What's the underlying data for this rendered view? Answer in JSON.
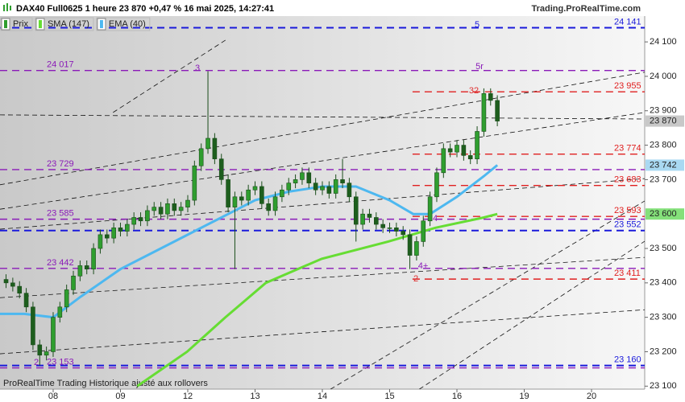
{
  "chart_data": {
    "type": "candlestick",
    "title": "DAX40 Full0625 1 heure 23 870 +0,47 % 16 mai 2025, 14:27:41",
    "source": "Trading.ProRealTime.com",
    "footer": "ProRealTime Trading  Historique ajusté aux rollovers",
    "xlim": [
      -0.79,
      8.79
    ],
    "xticks": [
      {
        "value": 0,
        "label": "08"
      },
      {
        "value": 1,
        "label": "09"
      },
      {
        "value": 2,
        "label": "12"
      },
      {
        "value": 3,
        "label": "13"
      },
      {
        "value": 4,
        "label": "14"
      },
      {
        "value": 5,
        "label": "15"
      },
      {
        "value": 6,
        "label": "16"
      },
      {
        "value": 7,
        "label": "19"
      },
      {
        "value": 8,
        "label": "20"
      }
    ],
    "ylim": [
      23096,
      24175
    ],
    "yticks": [
      {
        "value": 23100,
        "label": "23 100"
      },
      {
        "value": 23200,
        "label": "23 200"
      },
      {
        "value": 23300,
        "label": "23 300"
      },
      {
        "value": 23400,
        "label": "23 400"
      },
      {
        "value": 23500,
        "label": "23 500"
      },
      {
        "value": 23700,
        "label": "23 700"
      },
      {
        "value": 23800,
        "label": "23 800"
      },
      {
        "value": 23900,
        "label": "23 900"
      },
      {
        "value": 24000,
        "label": "24 000"
      },
      {
        "value": 24100,
        "label": "24 100"
      }
    ],
    "candles": {
      "name": "Prix",
      "up_color": "#2f9e2f",
      "down_color": "#1d5e1d",
      "x": [
        -0.7,
        -0.6,
        -0.5,
        -0.4,
        -0.3,
        -0.2,
        -0.1,
        0,
        0.1,
        0.2,
        0.3,
        0.4,
        0.5,
        0.6,
        0.7,
        0.8,
        0.9,
        1,
        1.1,
        1.2,
        1.3,
        1.4,
        1.5,
        1.6,
        1.7,
        1.8,
        1.9,
        2,
        2.1,
        2.2,
        2.3,
        2.4,
        2.5,
        2.6,
        2.7,
        2.8,
        2.9,
        3,
        3.1,
        3.2,
        3.3,
        3.4,
        3.5,
        3.6,
        3.7,
        3.8,
        3.9,
        4,
        4.1,
        4.2,
        4.3,
        4.4,
        4.5,
        4.6,
        4.7,
        4.8,
        4.9,
        5,
        5.1,
        5.2,
        5.3,
        5.4,
        5.5,
        5.6,
        5.7,
        5.8,
        5.9,
        6,
        6.1,
        6.2,
        6.3,
        6.4,
        6.5,
        6.6
      ],
      "ohlc": [
        [
          23410,
          23425,
          23385,
          23400
        ],
        [
          23400,
          23415,
          23375,
          23390
        ],
        [
          23390,
          23405,
          23355,
          23370
        ],
        [
          23370,
          23385,
          23315,
          23330
        ],
        [
          23330,
          23345,
          23205,
          23220
        ],
        [
          23220,
          23235,
          23160,
          23190
        ],
        [
          23190,
          23215,
          23175,
          23200
        ],
        [
          23200,
          23315,
          23185,
          23300
        ],
        [
          23300,
          23345,
          23285,
          23330
        ],
        [
          23330,
          23395,
          23315,
          23380
        ],
        [
          23380,
          23435,
          23365,
          23420
        ],
        [
          23420,
          23465,
          23405,
          23450
        ],
        [
          23450,
          23465,
          23425,
          23440
        ],
        [
          23440,
          23515,
          23425,
          23500
        ],
        [
          23500,
          23555,
          23485,
          23540
        ],
        [
          23540,
          23555,
          23515,
          23530
        ],
        [
          23530,
          23575,
          23515,
          23560
        ],
        [
          23560,
          23575,
          23535,
          23550
        ],
        [
          23550,
          23585,
          23535,
          23570
        ],
        [
          23570,
          23605,
          23555,
          23590
        ],
        [
          23590,
          23605,
          23565,
          23580
        ],
        [
          23580,
          23625,
          23565,
          23610
        ],
        [
          23610,
          23635,
          23595,
          23620
        ],
        [
          23620,
          23635,
          23585,
          23600
        ],
        [
          23600,
          23645,
          23585,
          23630
        ],
        [
          23630,
          23645,
          23595,
          23610
        ],
        [
          23610,
          23635,
          23595,
          23620
        ],
        [
          23620,
          23655,
          23605,
          23640
        ],
        [
          23640,
          23755,
          23625,
          23740
        ],
        [
          23740,
          23805,
          23725,
          23790
        ],
        [
          23790,
          24015,
          23775,
          23820
        ],
        [
          23820,
          23835,
          23745,
          23760
        ],
        [
          23760,
          23775,
          23685,
          23700
        ],
        [
          23700,
          23715,
          23605,
          23620
        ],
        [
          23620,
          23665,
          23440,
          23650
        ],
        [
          23650,
          23665,
          23625,
          23640
        ],
        [
          23640,
          23685,
          23625,
          23670
        ],
        [
          23670,
          23695,
          23655,
          23680
        ],
        [
          23680,
          23695,
          23615,
          23630
        ],
        [
          23630,
          23645,
          23595,
          23610
        ],
        [
          23610,
          23665,
          23595,
          23650
        ],
        [
          23650,
          23685,
          23635,
          23670
        ],
        [
          23670,
          23705,
          23655,
          23690
        ],
        [
          23690,
          23715,
          23675,
          23700
        ],
        [
          23700,
          23735,
          23685,
          23720
        ],
        [
          23720,
          23735,
          23675,
          23690
        ],
        [
          23690,
          23705,
          23655,
          23670
        ],
        [
          23670,
          23695,
          23655,
          23680
        ],
        [
          23680,
          23695,
          23645,
          23660
        ],
        [
          23660,
          23715,
          23645,
          23700
        ],
        [
          23700,
          23760,
          23675,
          23690
        ],
        [
          23690,
          23705,
          23635,
          23650
        ],
        [
          23650,
          23665,
          23520,
          23570
        ],
        [
          23570,
          23615,
          23555,
          23600
        ],
        [
          23600,
          23615,
          23575,
          23590
        ],
        [
          23590,
          23605,
          23555,
          23570
        ],
        [
          23570,
          23585,
          23545,
          23560
        ],
        [
          23560,
          23575,
          23545,
          23560
        ],
        [
          23560,
          23575,
          23535,
          23550
        ],
        [
          23550,
          23565,
          23525,
          23540
        ],
        [
          23540,
          23555,
          23440,
          23480
        ],
        [
          23480,
          23535,
          23465,
          23520
        ],
        [
          23520,
          23595,
          23505,
          23580
        ],
        [
          23580,
          23665,
          23565,
          23650
        ],
        [
          23650,
          23735,
          23635,
          23720
        ],
        [
          23720,
          23805,
          23705,
          23790
        ],
        [
          23790,
          23805,
          23765,
          23780
        ],
        [
          23780,
          23815,
          23765,
          23800
        ],
        [
          23800,
          23815,
          23755,
          23770
        ],
        [
          23770,
          23785,
          23745,
          23760
        ],
        [
          23760,
          23855,
          23745,
          23840
        ],
        [
          23840,
          23965,
          23825,
          23950
        ],
        [
          23950,
          23965,
          23915,
          23930
        ],
        [
          23930,
          23945,
          23855,
          23870
        ]
      ]
    },
    "series": [
      {
        "name": "SMA (147)",
        "color": "#66dd33",
        "x": [
          1.25,
          1.99,
          2.56,
          3.16,
          3.99,
          4.98,
          5.68,
          6.4,
          6.6
        ],
        "values": [
          23100,
          23200,
          23300,
          23400,
          23470,
          23520,
          23560,
          23590,
          23600
        ]
      },
      {
        "name": "EMA (40)",
        "color": "#4db8f0",
        "x": [
          -0.79,
          -0.43,
          0,
          0.41,
          1,
          1.6,
          2,
          2.4,
          2.7,
          3,
          3.5,
          4,
          4.5,
          5,
          5.35,
          5.6,
          6,
          6.4,
          6.6
        ],
        "values": [
          23310,
          23310,
          23300,
          23360,
          23440,
          23500,
          23540,
          23580,
          23610,
          23640,
          23665,
          23680,
          23680,
          23640,
          23600,
          23600,
          23650,
          23710,
          23742
        ]
      }
    ],
    "levels": [
      {
        "value": 24141,
        "label": "24 141",
        "color": "#1a1adb",
        "side": "right",
        "start": -0.79
      },
      {
        "value": 24017,
        "label": "24 017",
        "color": "#8a1ab8",
        "side": "left",
        "start": -0.79
      },
      {
        "value": 23955,
        "label": "23 955",
        "color": "#e02020",
        "side": "right",
        "start": 5.34
      },
      {
        "value": 23774,
        "label": "23 774",
        "color": "#e02020",
        "side": "right",
        "start": 5.34
      },
      {
        "value": 23729,
        "label": "23 729",
        "color": "#8a1ab8",
        "side": "left",
        "start": -0.79
      },
      {
        "value": 23683,
        "label": "23 683",
        "color": "#e02020",
        "side": "right",
        "start": 5.34
      },
      {
        "value": 23593,
        "label": "23 593",
        "color": "#e02020",
        "side": "right",
        "start": 5.34
      },
      {
        "value": 23585,
        "label": "23 585",
        "color": "#8a1ab8",
        "side": "left",
        "start": -0.79
      },
      {
        "value": 23552,
        "label": "23 552",
        "color": "#1a1adb",
        "side": "right",
        "start": -0.79
      },
      {
        "value": 23442,
        "label": "23 442",
        "color": "#8a1ab8",
        "side": "left",
        "start": -0.79
      },
      {
        "value": 23411,
        "label": "23 411",
        "color": "#e02020",
        "side": "right",
        "start": 5.34
      },
      {
        "value": 23160,
        "label": "23 160",
        "color": "#1a1adb",
        "side": "right",
        "start": -0.79
      },
      {
        "value": 23153,
        "label": "23 153",
        "color": "#8a1ab8",
        "side": "left",
        "start": -0.79
      }
    ],
    "price_tags": [
      {
        "value": 23870,
        "label": "23 870",
        "color": "#c8c8c8"
      },
      {
        "value": 23742,
        "label": "23 742",
        "color": "#a9d9f2"
      },
      {
        "value": 23600,
        "label": "23 600",
        "color": "#84e07a"
      }
    ],
    "trendlines": [
      {
        "from": [
          -0.79,
          23888
        ],
        "to": [
          8.79,
          23876
        ]
      },
      {
        "from": [
          -0.79,
          23685
        ],
        "to": [
          8.79,
          24012
        ]
      },
      {
        "from": [
          -0.79,
          23614
        ],
        "to": [
          8.79,
          23895
        ]
      },
      {
        "from": [
          -0.79,
          23556
        ],
        "to": [
          8.79,
          23703
        ]
      },
      {
        "from": [
          -0.79,
          23357
        ],
        "to": [
          8.79,
          23474
        ]
      },
      {
        "from": [
          -0.79,
          23194
        ],
        "to": [
          8.79,
          23322
        ]
      },
      {
        "from": [
          4.12,
          23091
        ],
        "to": [
          8.79,
          23638
        ]
      },
      {
        "from": [
          5.44,
          23091
        ],
        "to": [
          8.79,
          23521
        ]
      },
      {
        "from": [
          0.89,
          23895
        ],
        "to": [
          2.56,
          24105
        ]
      }
    ],
    "annotations": [
      {
        "text": "5",
        "color": "#1a1adb"
      },
      {
        "text": "3",
        "color": "#8a1ab8"
      },
      {
        "text": "5r",
        "color": "#8a1ab8"
      },
      {
        "text": "32",
        "color": "#e03030"
      },
      {
        "text": "4",
        "color": "#8a1ab8"
      },
      {
        "text": "4+",
        "color": "#8a1ab8"
      },
      {
        "text": "2",
        "color": "#e03030"
      },
      {
        "text": "2",
        "color": "#8a1ab8"
      }
    ]
  }
}
